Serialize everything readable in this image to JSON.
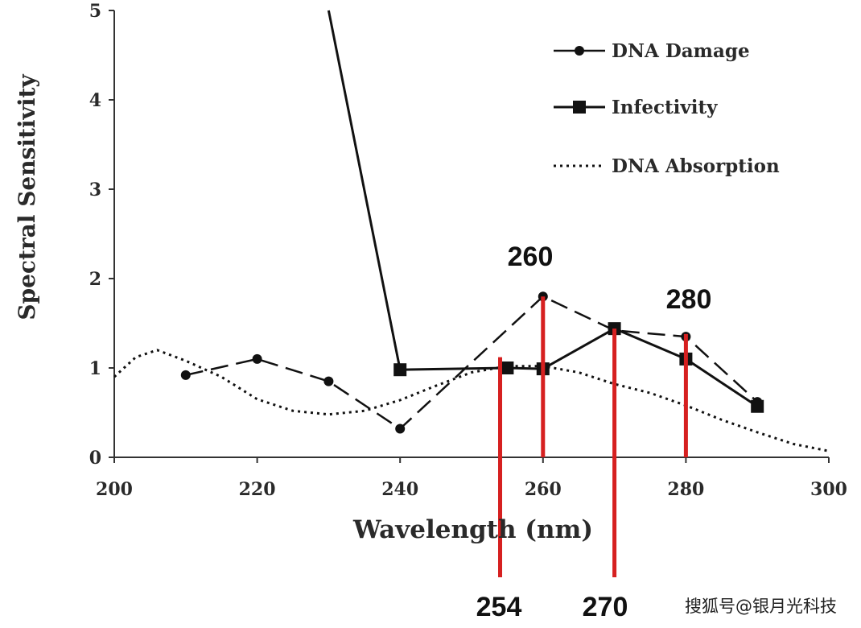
{
  "chart_data": {
    "type": "line",
    "title": "",
    "xlabel": "Wavelength (nm)",
    "ylabel": "Spectral Sensitivity",
    "xlim": [
      200,
      300
    ],
    "ylim": [
      0,
      5
    ],
    "x_ticks": [
      200,
      220,
      240,
      260,
      280,
      300
    ],
    "y_ticks": [
      0,
      1,
      2,
      3,
      4,
      5
    ],
    "x_tick_labels": [
      "200",
      "220",
      "240",
      "260",
      "280",
      "300"
    ],
    "y_tick_labels": [
      "0",
      "1",
      "2",
      "3",
      "4",
      "5"
    ],
    "grid": false,
    "legend_position": "top-right",
    "series": [
      {
        "name": "DNA Damage",
        "style": "dashed-circle",
        "color": "#111111",
        "x": [
          210,
          220,
          230,
          240,
          260,
          270,
          280,
          290
        ],
        "y": [
          0.92,
          1.1,
          0.85,
          0.32,
          1.8,
          1.42,
          1.35,
          0.62
        ]
      },
      {
        "name": "Infectivity",
        "style": "solid-square",
        "color": "#111111",
        "x": [
          230,
          240,
          255,
          260,
          270,
          280,
          290
        ],
        "y": [
          5.0,
          0.98,
          1.0,
          0.99,
          1.44,
          1.1,
          0.57
        ]
      },
      {
        "name": "DNA Absorption",
        "style": "dotted",
        "color": "#111111",
        "x": [
          200,
          203,
          206,
          210,
          215,
          220,
          225,
          230,
          235,
          240,
          245,
          250,
          255,
          260,
          265,
          270,
          275,
          280,
          285,
          290,
          295,
          300
        ],
        "y": [
          0.9,
          1.12,
          1.2,
          1.08,
          0.9,
          0.65,
          0.52,
          0.48,
          0.52,
          0.64,
          0.8,
          0.95,
          1.02,
          1.02,
          0.95,
          0.82,
          0.72,
          0.58,
          0.42,
          0.28,
          0.15,
          0.07
        ]
      }
    ],
    "markers": [
      {
        "x": 254,
        "label": "254",
        "color": "#d62020",
        "y_top": 1.12
      },
      {
        "x": 260,
        "label": "260",
        "color": "#d62020",
        "y_top": 1.8
      },
      {
        "x": 270,
        "label": "270",
        "color": "#d62020",
        "y_top": 1.44
      },
      {
        "x": 280,
        "label": "280",
        "color": "#d62020",
        "y_top": 1.38
      }
    ]
  },
  "watermark": "搜狐号@银月光科技"
}
